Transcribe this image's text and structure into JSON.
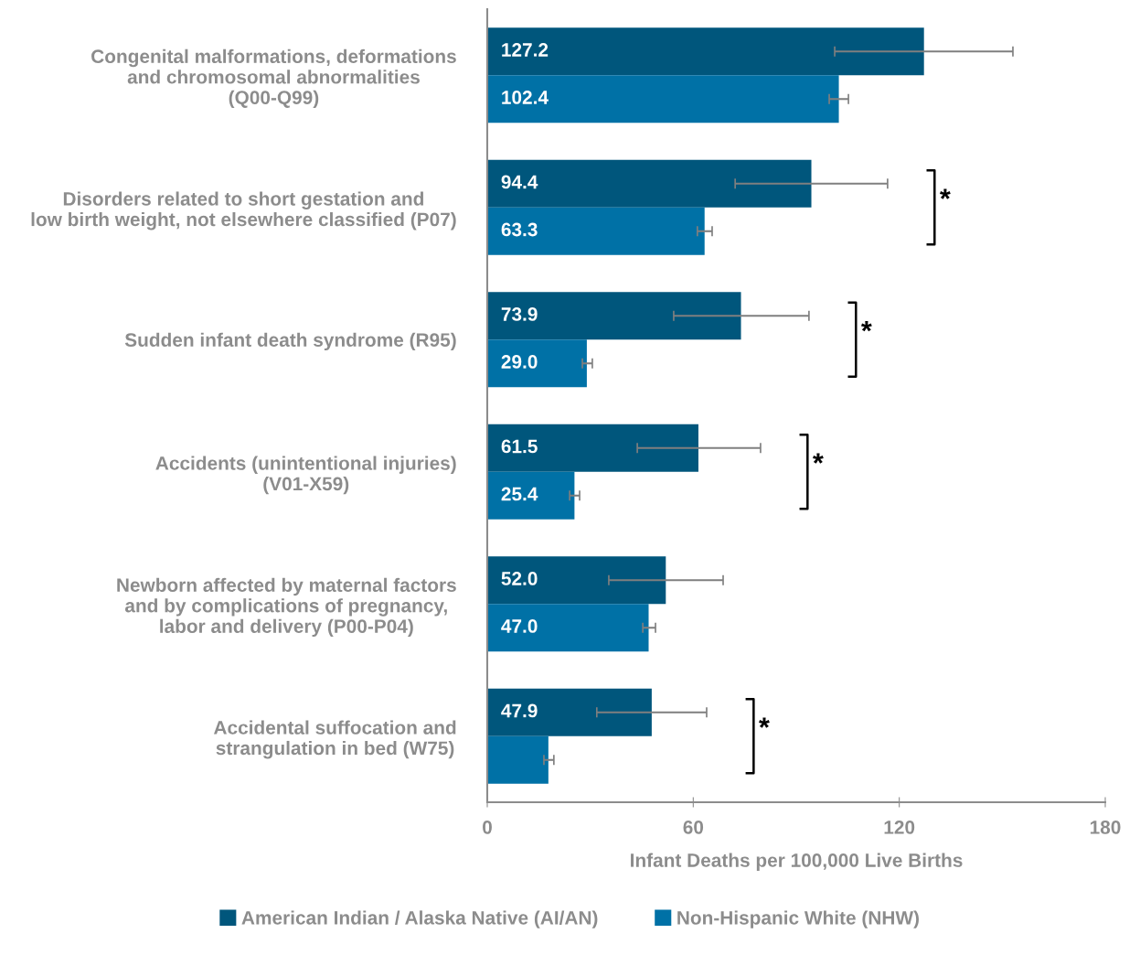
{
  "chart_data": {
    "type": "bar",
    "orientation": "horizontal",
    "xlabel": "Infant Deaths per 100,000 Live Births",
    "categories": [
      "Congenital malformations, deformations\nand chromosomal abnormalities\n(Q00-Q99)",
      "Disorders related to short gestation and\nlow birth weight, not elsewhere classified (P07)",
      "Sudden infant death syndrome (R95)",
      "Accidents (unintentional injuries)\n(V01-X59)",
      "Newborn affected by maternal factors\nand by complications of pregnancy,\nlabor and delivery (P00-P04)",
      "Accidental suffocation and\nstrangulation in bed (W75)"
    ],
    "series": [
      {
        "name": "American Indian / Alaska Native (AI/AN)",
        "color": "#00567c",
        "values": [
          127.2,
          94.4,
          73.9,
          61.5,
          52.0,
          47.9
        ],
        "errors": [
          [
            101.2,
            153.1
          ],
          [
            72.2,
            116.6
          ],
          [
            54.3,
            93.7
          ],
          [
            43.7,
            79.6
          ],
          [
            35.4,
            68.7
          ],
          [
            31.9,
            63.9
          ]
        ],
        "value_labels": [
          "127.2",
          "94.4",
          "73.9",
          "61.5",
          "52.0",
          "47.9"
        ]
      },
      {
        "name": "Non-Hispanic White (NHW)",
        "color": "#0071a6",
        "values": [
          102.4,
          63.3,
          29.0,
          25.4,
          47.0,
          17.8
        ],
        "errors": [
          [
            99.6,
            105.2
          ],
          [
            61.2,
            65.5
          ],
          [
            27.7,
            30.6
          ],
          [
            24.0,
            26.9
          ],
          [
            45.3,
            49.0
          ],
          [
            16.5,
            19.4
          ]
        ],
        "value_labels": [
          "102.4",
          "63.3",
          "29.0",
          "25.4",
          "47.0",
          null
        ]
      }
    ],
    "xlim": [
      0,
      180
    ],
    "xticks": [
      0,
      60,
      120,
      180
    ],
    "grid": false,
    "legend": "bottom",
    "annotations": [
      "*",
      "*",
      "*",
      "*"
    ]
  }
}
